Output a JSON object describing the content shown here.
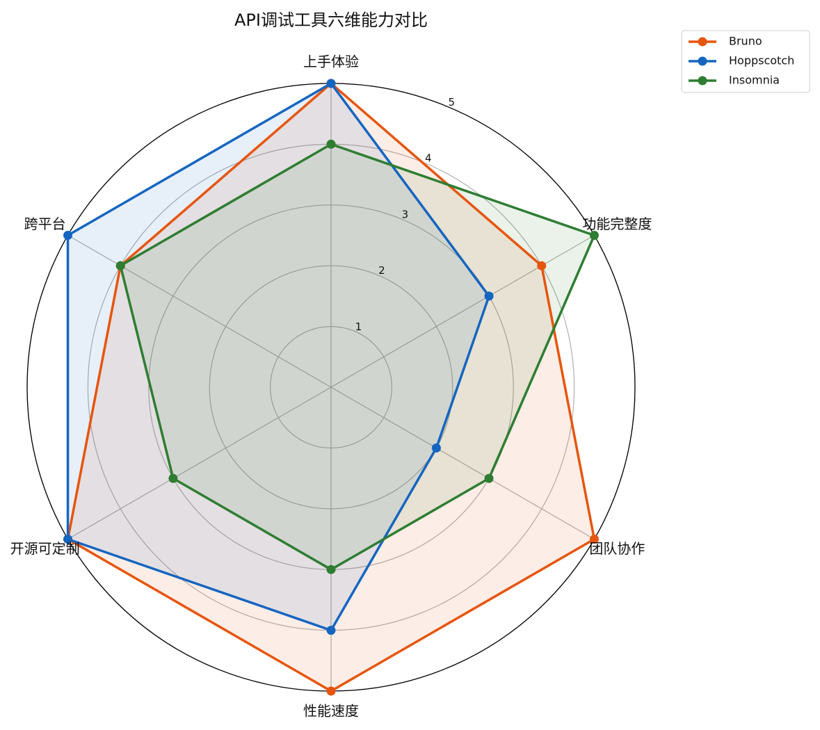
{
  "chart_data": {
    "type": "radar",
    "title": "API调试工具六维能力对比",
    "categories": [
      "上手体验",
      "功能完整度",
      "团队协作",
      "性能速度",
      "开源可定制",
      "跨平台"
    ],
    "series": [
      {
        "name": "Bruno",
        "color": "#e6550d",
        "values": [
          5,
          4,
          5,
          5,
          5,
          4
        ]
      },
      {
        "name": "Hoppscotch",
        "color": "#1565c0",
        "values": [
          5,
          3,
          2,
          4,
          5,
          5
        ]
      },
      {
        "name": "Insomnia",
        "color": "#2e7d32",
        "values": [
          4,
          5,
          3,
          3,
          3,
          4
        ]
      }
    ],
    "ylim": [
      0,
      5
    ],
    "yticks": [
      1,
      2,
      3,
      4,
      5
    ],
    "grid": true,
    "legend": "upper right"
  }
}
